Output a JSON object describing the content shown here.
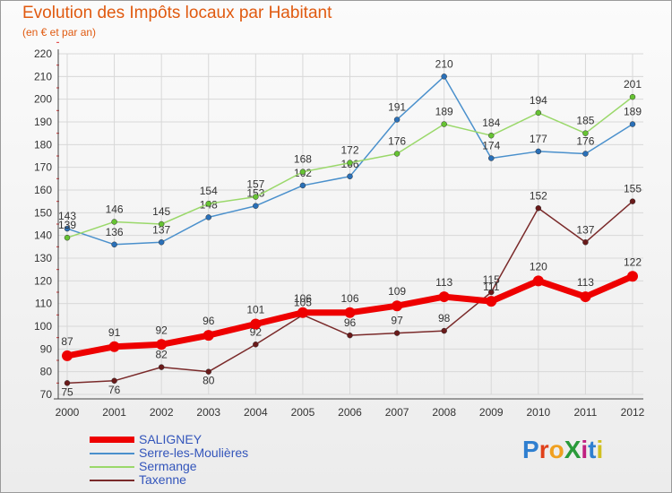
{
  "title": "Evolution des Impôts locaux par Habitant",
  "subtitle": "(en € et par an)",
  "logo": {
    "text": "ProXiti",
    "colors": [
      "#2f7fd0",
      "#e0401a",
      "#f0a020",
      "#2a9a3a",
      "#c02080",
      "#2f7fd0",
      "#d0c020"
    ]
  },
  "chart_data": {
    "type": "line",
    "title": "Evolution des Impôts locaux par Habitant",
    "ylabel": "(en € et par an)",
    "xlabel": "",
    "ylim": [
      70,
      220
    ],
    "yticks": [
      70,
      80,
      90,
      100,
      110,
      120,
      130,
      140,
      150,
      160,
      170,
      180,
      190,
      200,
      210,
      220
    ],
    "x": [
      "2000",
      "2001",
      "2002",
      "2003",
      "2004",
      "2005",
      "2006",
      "2007",
      "2008",
      "2009",
      "2010",
      "2011",
      "2012"
    ],
    "grid": true,
    "legend_position": "bottom-left",
    "series": [
      {
        "name": "Serre-les-Moulières",
        "color": "#4a90cc",
        "marker": "#2a70b8",
        "thick": false,
        "values": [
          143,
          136,
          137,
          148,
          153,
          162,
          166,
          191,
          210,
          174,
          177,
          176,
          189
        ]
      },
      {
        "name": "Sermange",
        "color": "#9ad86a",
        "marker": "#66c333",
        "thick": false,
        "values": [
          139,
          146,
          145,
          154,
          157,
          168,
          172,
          176,
          189,
          184,
          194,
          185,
          201
        ]
      },
      {
        "name": "Taxenne",
        "color": "#7a2a2a",
        "marker": "#6a1a1a",
        "thick": false,
        "values": [
          75,
          76,
          82,
          80,
          92,
          105,
          96,
          97,
          98,
          115,
          152,
          137,
          155
        ]
      },
      {
        "name": "SALIGNEY",
        "color": "#ee0000",
        "marker": "#ee0000",
        "thick": true,
        "values": [
          87,
          91,
          92,
          96,
          101,
          106,
          106,
          109,
          113,
          111,
          120,
          113,
          122
        ]
      }
    ],
    "legend_order": [
      "SALIGNEY",
      "Serre-les-Moulières",
      "Sermange",
      "Taxenne"
    ]
  }
}
